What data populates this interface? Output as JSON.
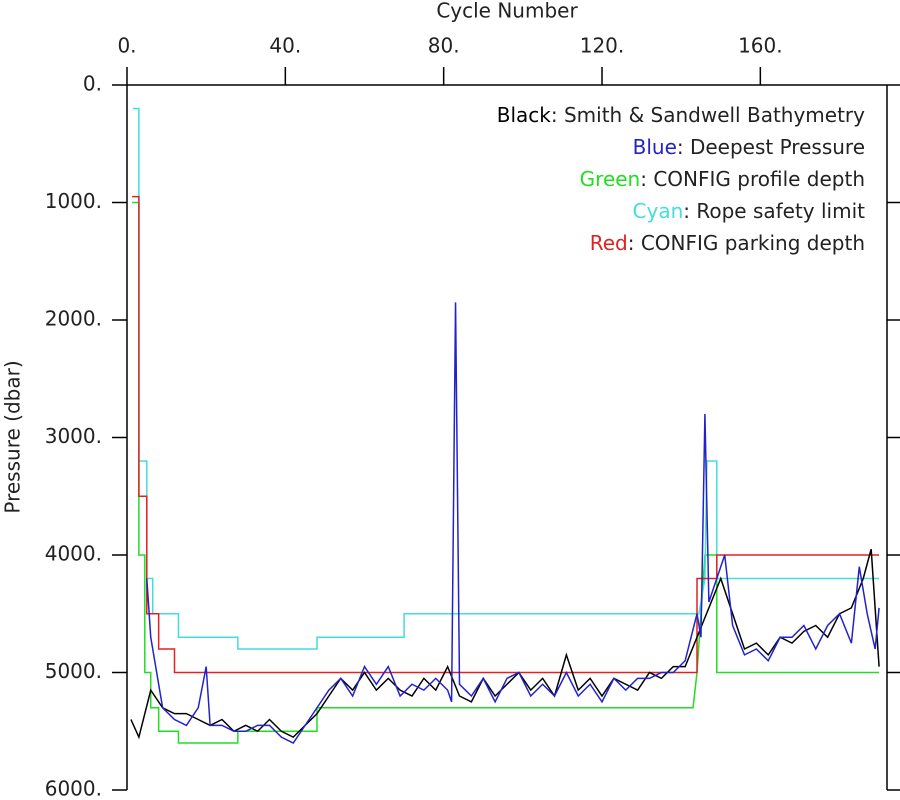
{
  "chart_data": {
    "type": "line",
    "xlabel": "Cycle Number",
    "ylabel": "Pressure (dbar)",
    "xaxis_position": "top",
    "y_inverted": true,
    "xlim": [
      0,
      192
    ],
    "ylim": [
      0,
      6000
    ],
    "xticks": [
      {
        "value": 0,
        "label": "0."
      },
      {
        "value": 40,
        "label": "40."
      },
      {
        "value": 80,
        "label": "80."
      },
      {
        "value": 120,
        "label": "120."
      },
      {
        "value": 160,
        "label": "160."
      }
    ],
    "yticks": [
      {
        "value": 0,
        "label": "0."
      },
      {
        "value": 1000,
        "label": "1000."
      },
      {
        "value": 2000,
        "label": "2000."
      },
      {
        "value": 3000,
        "label": "3000."
      },
      {
        "value": 4000,
        "label": "4000."
      },
      {
        "value": 5000,
        "label": "5000."
      },
      {
        "value": 6000,
        "label": "6000."
      }
    ],
    "legend": "upper right",
    "series": [
      {
        "name": "Green: CONFIG profile depth",
        "color": "#22dd22",
        "x": [
          1.3,
          3,
          3,
          4.5,
          4.5,
          6,
          6,
          8,
          8,
          13,
          13,
          28,
          28,
          48,
          48,
          70,
          70,
          143,
          144,
          146,
          148,
          149,
          149,
          190
        ],
        "values": [
          1000,
          1000,
          4000,
          4000,
          5000,
          5000,
          5300,
          5300,
          5500,
          5500,
          5600,
          5600,
          5500,
          5500,
          5300,
          5300,
          5300,
          5300,
          5000,
          4000,
          4000,
          4000,
          5000,
          5000
        ]
      },
      {
        "name": "Cyan: Rope safety limit",
        "color": "#44dddd",
        "x": [
          1.5,
          3,
          3,
          5,
          5,
          6.5,
          6.5,
          13,
          13,
          28,
          28,
          48,
          48,
          70,
          70,
          144.5,
          146,
          146.5,
          148.5,
          149,
          149,
          190
        ],
        "values": [
          200,
          200,
          3200,
          3200,
          4200,
          4200,
          4500,
          4500,
          4700,
          4700,
          4800,
          4800,
          4700,
          4700,
          4500,
          4500,
          4200,
          3200,
          3200,
          3200,
          4200,
          4200
        ]
      },
      {
        "name": "Red: CONFIG parking depth",
        "color": "#e02222",
        "x": [
          1.3,
          3,
          3,
          5,
          5,
          8,
          8,
          12,
          12,
          144,
          144,
          149,
          149,
          190
        ],
        "values": [
          950,
          950,
          3500,
          3500,
          4500,
          4500,
          4800,
          4800,
          5000,
          5000,
          4200,
          4200,
          4000,
          4000
        ]
      },
      {
        "name": "Black: Smith & Sandwell Bathymetry",
        "color": "#000000",
        "x": [
          1,
          3,
          6,
          9,
          12,
          15,
          18,
          21,
          24,
          27,
          30,
          33,
          36,
          39,
          42,
          45,
          48,
          51,
          54,
          57,
          60,
          63,
          66,
          69,
          72,
          75,
          78,
          81,
          84,
          87,
          90,
          93,
          96,
          99,
          102,
          105,
          108,
          111,
          114,
          117,
          120,
          123,
          126,
          129,
          132,
          135,
          138,
          141,
          144,
          147,
          150,
          153,
          156,
          159,
          162,
          165,
          168,
          171,
          174,
          177,
          180,
          183,
          186,
          188,
          190
        ],
        "values": [
          5400,
          5550,
          5150,
          5300,
          5350,
          5350,
          5400,
          5450,
          5400,
          5500,
          5450,
          5500,
          5400,
          5500,
          5550,
          5450,
          5350,
          5200,
          5050,
          5150,
          5000,
          5150,
          5050,
          5150,
          5200,
          5050,
          5150,
          4950,
          5200,
          5250,
          5050,
          5200,
          5100,
          5000,
          5150,
          5050,
          5200,
          4850,
          5150,
          5050,
          5200,
          5050,
          5100,
          5150,
          5000,
          5050,
          4950,
          4950,
          4700,
          4450,
          4200,
          4500,
          4800,
          4750,
          4850,
          4700,
          4750,
          4650,
          4600,
          4700,
          4500,
          4450,
          4200,
          3950,
          4950
        ]
      },
      {
        "name": "Blue: Deepest Pressure",
        "color": "#2222cc",
        "x": [
          5,
          6,
          9,
          12,
          15,
          18,
          20,
          21,
          24,
          27,
          30,
          33,
          36,
          39,
          42,
          45,
          48,
          51,
          54,
          57,
          60,
          63,
          66,
          69,
          72,
          75,
          78,
          81,
          82,
          83,
          84,
          87,
          90,
          93,
          96,
          99,
          102,
          105,
          108,
          111,
          114,
          117,
          120,
          123,
          126,
          129,
          132,
          135,
          138,
          141,
          144,
          145,
          146,
          147,
          149,
          151,
          153,
          156,
          159,
          162,
          165,
          168,
          171,
          174,
          177,
          180,
          183,
          185,
          187,
          189,
          190
        ],
        "values": [
          4200,
          4700,
          5300,
          5400,
          5450,
          5300,
          4950,
          5450,
          5450,
          5500,
          5500,
          5450,
          5450,
          5550,
          5600,
          5450,
          5300,
          5150,
          5050,
          5200,
          4950,
          5100,
          4950,
          5200,
          5100,
          5150,
          5050,
          5150,
          5250,
          1850,
          5100,
          5200,
          5050,
          5250,
          5050,
          5000,
          5200,
          5100,
          5200,
          5000,
          5200,
          5100,
          5250,
          5050,
          5150,
          5050,
          5050,
          5000,
          5000,
          4900,
          4500,
          4700,
          2800,
          4400,
          4200,
          4000,
          4600,
          4850,
          4800,
          4900,
          4700,
          4700,
          4600,
          4800,
          4600,
          4500,
          4750,
          4100,
          4500,
          4800,
          4450
        ]
      }
    ],
    "legend_order": [
      3,
      4,
      0,
      1,
      2
    ]
  }
}
